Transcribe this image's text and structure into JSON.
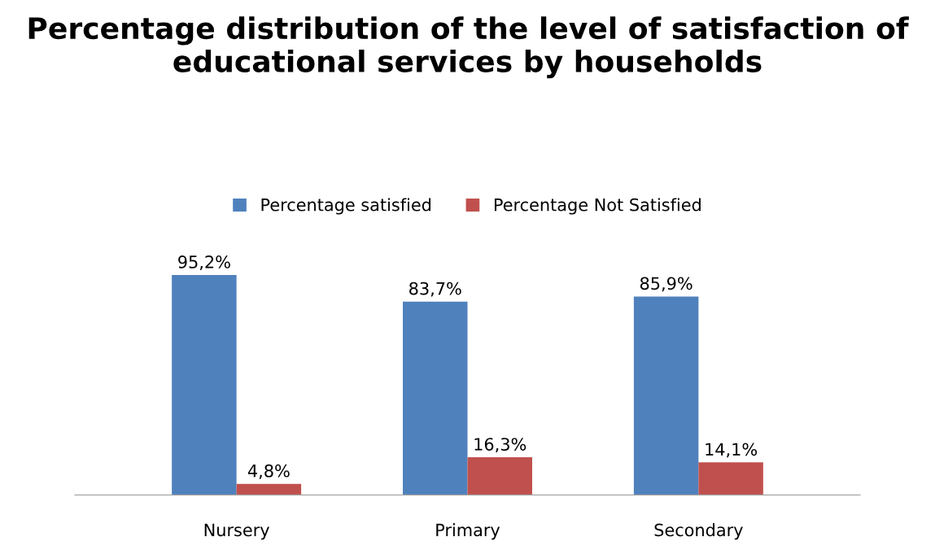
{
  "chart_data": {
    "type": "bar",
    "title": "Percentage distribution of the level of satisfaction of educational services by households",
    "categories": [
      "Nursery",
      "Primary",
      "Secondary"
    ],
    "series": [
      {
        "name": "Percentage satisfied",
        "color": "#4f81bd",
        "values": [
          95.2,
          83.7,
          85.9
        ],
        "value_labels": [
          "95,2%",
          "83,7%",
          "85,9%"
        ]
      },
      {
        "name": "Percentage Not Satisfied",
        "color": "#c0504d",
        "values": [
          4.8,
          16.3,
          14.1
        ],
        "value_labels": [
          "4,8%",
          "16,3%",
          "14,1%"
        ]
      }
    ],
    "legend": "top"
  }
}
